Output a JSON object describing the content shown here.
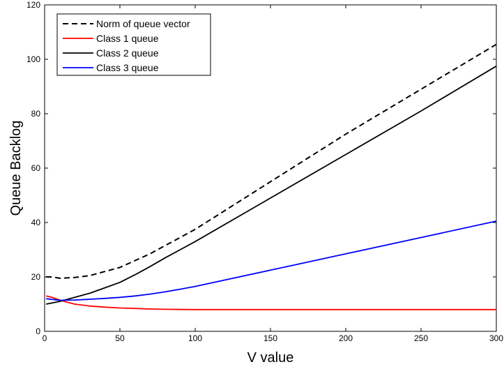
{
  "chart_data": {
    "type": "line",
    "title": "",
    "xlabel": "V value",
    "ylabel": "Queue Backlog",
    "xlim": [
      0,
      300
    ],
    "ylim": [
      0,
      120
    ],
    "xticks": [
      0,
      50,
      100,
      150,
      200,
      250,
      300
    ],
    "yticks": [
      0,
      20,
      40,
      60,
      80,
      100,
      120
    ],
    "grid": false,
    "legend_position": "top-left",
    "series": [
      {
        "name": "Norm of queue vector",
        "color": "#000000",
        "dash": "dashed",
        "x": [
          1,
          5,
          10,
          20,
          30,
          40,
          50,
          60,
          70,
          80,
          90,
          100,
          150,
          200,
          250,
          300
        ],
        "y": [
          20,
          20,
          19.5,
          19.8,
          20.5,
          22,
          23.5,
          26,
          28.5,
          31.5,
          34.5,
          37.5,
          55,
          72.5,
          89,
          105.5
        ]
      },
      {
        "name": "Class 1 queue",
        "color": "#ff0000",
        "dash": "solid",
        "x": [
          1,
          5,
          10,
          15,
          20,
          30,
          40,
          50,
          60,
          70,
          80,
          100,
          150,
          200,
          250,
          300
        ],
        "y": [
          13,
          12.5,
          11.5,
          10.7,
          10,
          9.3,
          8.9,
          8.6,
          8.4,
          8.2,
          8.1,
          8,
          8,
          8,
          8,
          8
        ]
      },
      {
        "name": "Class 2 queue",
        "color": "#000000",
        "dash": "solid",
        "x": [
          1,
          10,
          20,
          30,
          40,
          50,
          60,
          70,
          80,
          90,
          100,
          150,
          200,
          250,
          300
        ],
        "y": [
          10,
          11,
          12.5,
          14,
          16,
          18,
          20.8,
          23.8,
          27,
          30,
          33,
          49,
          65,
          81,
          97.5
        ]
      },
      {
        "name": "Class 3 queue",
        "color": "#0000ff",
        "dash": "solid",
        "x": [
          1,
          10,
          20,
          30,
          40,
          50,
          60,
          70,
          80,
          90,
          100,
          150,
          200,
          250,
          300
        ],
        "y": [
          12,
          11.4,
          11.5,
          11.8,
          12.1,
          12.5,
          13,
          13.7,
          14.5,
          15.5,
          16.5,
          22.5,
          28.5,
          34.5,
          40.5
        ]
      }
    ]
  }
}
